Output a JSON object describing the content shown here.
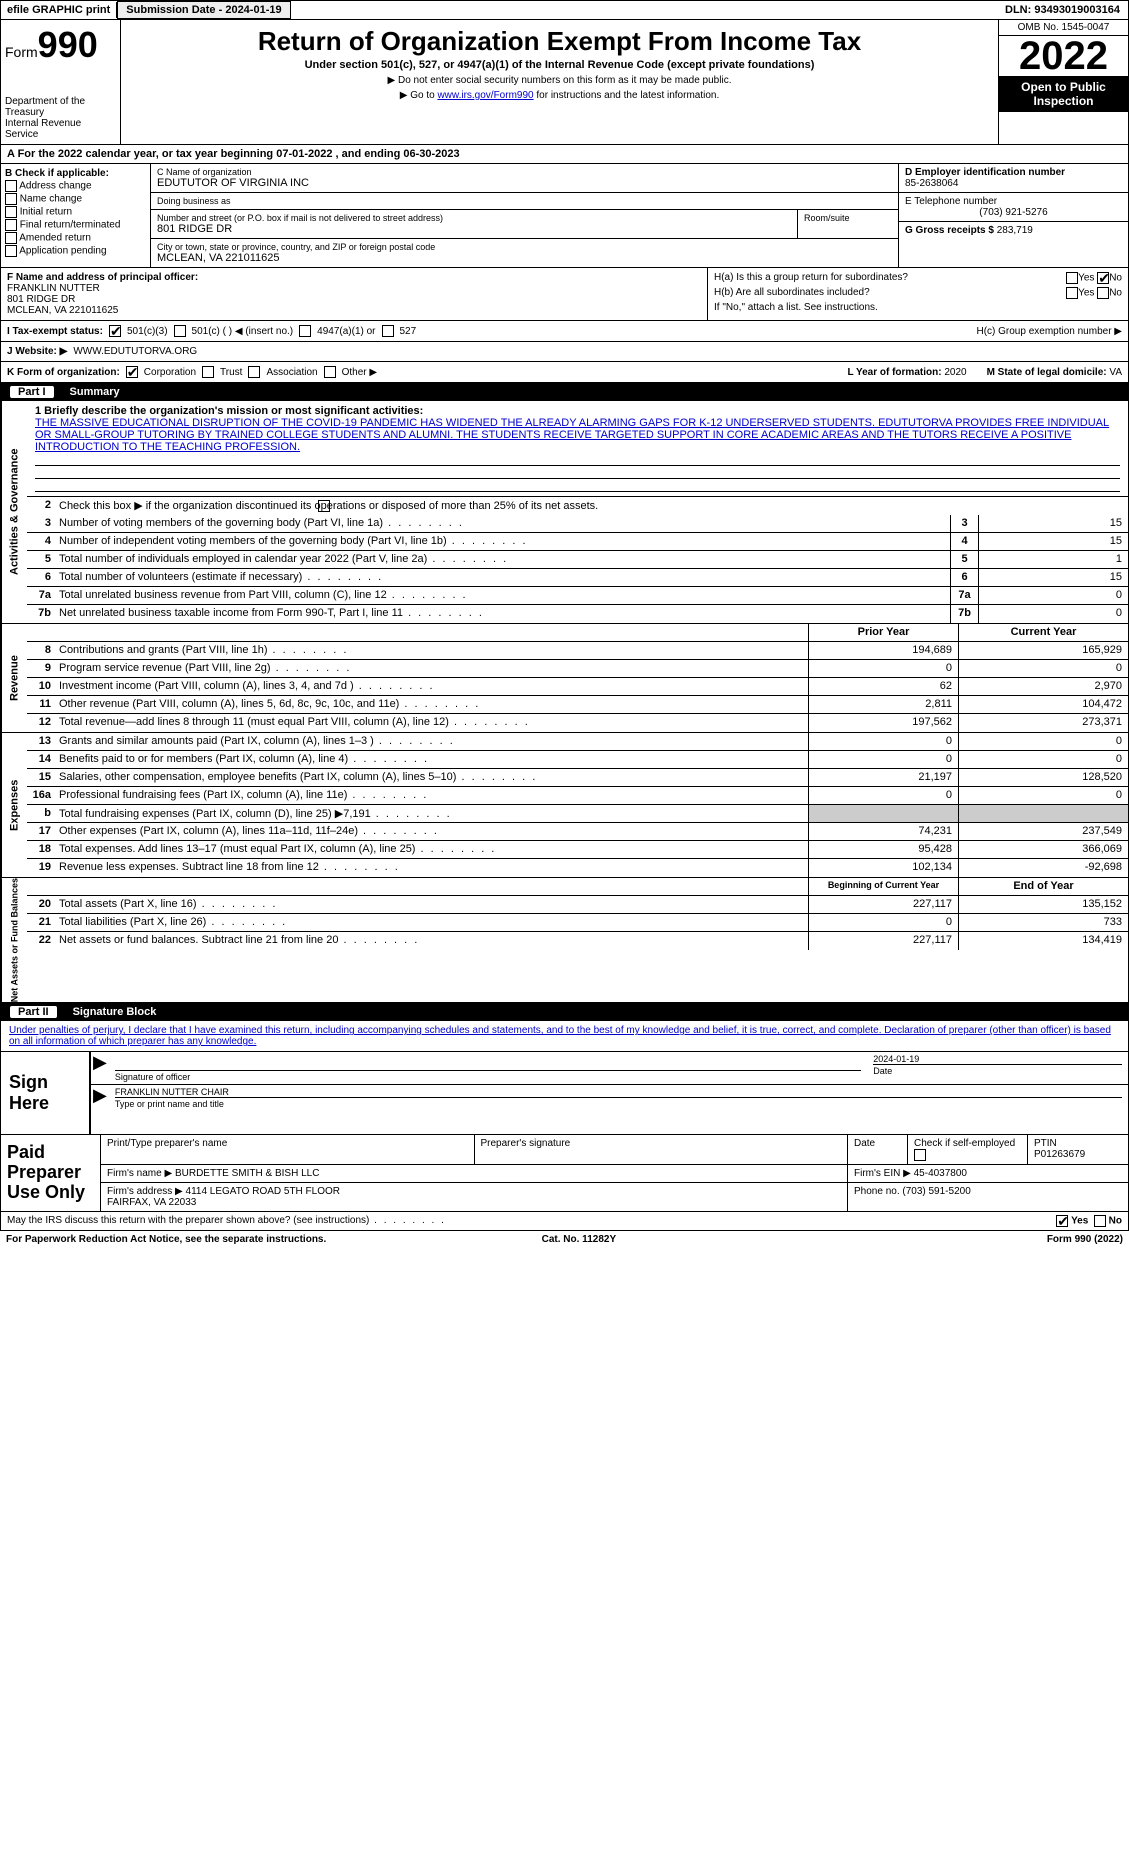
{
  "top": {
    "efile": "efile GRAPHIC print",
    "sub_label": "Submission Date - ",
    "sub_date": "2024-01-19",
    "dln_label": "DLN: ",
    "dln": "93493019003164"
  },
  "hdr": {
    "form_pre": "Form",
    "form_num": "990",
    "title": "Return of Organization Exempt From Income Tax",
    "sub": "Under section 501(c), 527, or 4947(a)(1) of the Internal Revenue Code (except private foundations)",
    "note1": "▶ Do not enter social security numbers on this form as it may be made public.",
    "note2_pre": "▶ Go to ",
    "note2_link": "www.irs.gov/Form990",
    "note2_post": " for instructions and the latest information.",
    "dept": "Department of the Treasury\nInternal Revenue Service",
    "omb": "OMB No. 1545-0047",
    "year": "2022",
    "open": "Open to Public Inspection"
  },
  "a": {
    "text_pre": "A For the 2022 calendar year, or tax year beginning ",
    "begin": "07-01-2022",
    "mid": "     , and ending ",
    "end": "06-30-2023"
  },
  "b": {
    "hdr": "B Check if applicable:",
    "opts": [
      "Address change",
      "Name change",
      "Initial return",
      "Final return/terminated",
      "Amended return",
      "Application pending"
    ]
  },
  "c": {
    "name_label": "C Name of organization",
    "name": "EDUTUTOR OF VIRGINIA INC",
    "dba_label": "Doing business as",
    "dba": "",
    "street_label": "Number and street (or P.O. box if mail is not delivered to street address)",
    "room_label": "Room/suite",
    "street": "801 RIDGE DR",
    "city_label": "City or town, state or province, country, and ZIP or foreign postal code",
    "city": "MCLEAN, VA  221011625"
  },
  "d": {
    "label": "D Employer identification number",
    "val": "85-2638064"
  },
  "e": {
    "label": "E Telephone number",
    "val": "(703) 921-5276"
  },
  "g": {
    "label": "G Gross receipts $ ",
    "val": "283,719"
  },
  "f": {
    "label": "F  Name and address of principal officer:",
    "name": "FRANKLIN NUTTER",
    "addr1": "801 RIDGE DR",
    "addr2": "MCLEAN, VA  221011625"
  },
  "h": {
    "a": "H(a)  Is this a group return for subordinates?",
    "b": "H(b)  Are all subordinates included?",
    "note": "If \"No,\" attach a list. See instructions.",
    "c": "H(c)  Group exemption number ▶",
    "yes": "Yes",
    "no": "No"
  },
  "i": {
    "label": "I   Tax-exempt status:",
    "c3": "501(c)(3)",
    "c": "501(c) (   ) ◀ (insert no.)",
    "a1": "4947(a)(1) or",
    "527": "527"
  },
  "j": {
    "label": "J   Website: ▶",
    "val": "WWW.EDUTUTORVA.ORG"
  },
  "k": {
    "label": "K Form of organization:",
    "corp": "Corporation",
    "trust": "Trust",
    "assoc": "Association",
    "other": "Other ▶",
    "l": "L Year of formation: ",
    "l_val": "2020",
    "m": "M State of legal domicile: ",
    "m_val": "VA"
  },
  "p1": {
    "num": "Part I",
    "title": "Summary"
  },
  "mission": {
    "q1": "1 Briefly describe the organization's mission or most significant activities:",
    "text": "THE MASSIVE EDUCATIONAL DISRUPTION OF THE COVID-19 PANDEMIC HAS WIDENED THE ALREADY ALARMING GAPS FOR K-12 UNDERSERVED STUDENTS. EDUTUTORVA PROVIDES FREE INDIVIDUAL OR SMALL-GROUP TUTORING BY TRAINED COLLEGE STUDENTS AND ALUMNI. THE STUDENTS RECEIVE TARGETED SUPPORT IN CORE ACADEMIC AREAS AND THE TUTORS RECEIVE A POSITIVE INTRODUCTION TO THE TEACHING PROFESSION."
  },
  "gov": {
    "tab": "Activities & Governance",
    "r2": "Check this box ▶        if the organization discontinued its operations or disposed of more than 25% of its net assets.",
    "rows": [
      {
        "n": "3",
        "d": "Number of voting members of the governing body (Part VI, line 1a)",
        "b": "3",
        "v": "15"
      },
      {
        "n": "4",
        "d": "Number of independent voting members of the governing body (Part VI, line 1b)",
        "b": "4",
        "v": "15"
      },
      {
        "n": "5",
        "d": "Total number of individuals employed in calendar year 2022 (Part V, line 2a)",
        "b": "5",
        "v": "1"
      },
      {
        "n": "6",
        "d": "Total number of volunteers (estimate if necessary)",
        "b": "6",
        "v": "15"
      },
      {
        "n": "7a",
        "d": "Total unrelated business revenue from Part VIII, column (C), line 12",
        "b": "7a",
        "v": "0"
      },
      {
        "n": "7b",
        "d": "Net unrelated business taxable income from Form 990-T, Part I, line 11",
        "b": "7b",
        "v": "0"
      }
    ]
  },
  "rev": {
    "tab": "Revenue",
    "hdr_prior": "Prior Year",
    "hdr_curr": "Current Year",
    "rows": [
      {
        "n": "8",
        "d": "Contributions and grants (Part VIII, line 1h)",
        "p": "194,689",
        "c": "165,929"
      },
      {
        "n": "9",
        "d": "Program service revenue (Part VIII, line 2g)",
        "p": "0",
        "c": "0"
      },
      {
        "n": "10",
        "d": "Investment income (Part VIII, column (A), lines 3, 4, and 7d )",
        "p": "62",
        "c": "2,970"
      },
      {
        "n": "11",
        "d": "Other revenue (Part VIII, column (A), lines 5, 6d, 8c, 9c, 10c, and 11e)",
        "p": "2,811",
        "c": "104,472"
      },
      {
        "n": "12",
        "d": "Total revenue—add lines 8 through 11 (must equal Part VIII, column (A), line 12)",
        "p": "197,562",
        "c": "273,371"
      }
    ]
  },
  "exp": {
    "tab": "Expenses",
    "rows": [
      {
        "n": "13",
        "d": "Grants and similar amounts paid (Part IX, column (A), lines 1–3 )",
        "p": "0",
        "c": "0"
      },
      {
        "n": "14",
        "d": "Benefits paid to or for members (Part IX, column (A), line 4)",
        "p": "0",
        "c": "0"
      },
      {
        "n": "15",
        "d": "Salaries, other compensation, employee benefits (Part IX, column (A), lines 5–10)",
        "p": "21,197",
        "c": "128,520"
      },
      {
        "n": "16a",
        "d": "Professional fundraising fees (Part IX, column (A), line 11e)",
        "p": "0",
        "c": "0"
      },
      {
        "n": "b",
        "d": "Total fundraising expenses (Part IX, column (D), line 25) ▶7,191",
        "p": "",
        "c": "",
        "shade": true
      },
      {
        "n": "17",
        "d": "Other expenses (Part IX, column (A), lines 11a–11d, 11f–24e)",
        "p": "74,231",
        "c": "237,549"
      },
      {
        "n": "18",
        "d": "Total expenses. Add lines 13–17 (must equal Part IX, column (A), line 25)",
        "p": "95,428",
        "c": "366,069"
      },
      {
        "n": "19",
        "d": "Revenue less expenses. Subtract line 18 from line 12",
        "p": "102,134",
        "c": "-92,698"
      }
    ]
  },
  "net": {
    "tab": "Net Assets or Fund Balances",
    "hdr_prior": "Beginning of Current Year",
    "hdr_curr": "End of Year",
    "rows": [
      {
        "n": "20",
        "d": "Total assets (Part X, line 16)",
        "p": "227,117",
        "c": "135,152"
      },
      {
        "n": "21",
        "d": "Total liabilities (Part X, line 26)",
        "p": "0",
        "c": "733"
      },
      {
        "n": "22",
        "d": "Net assets or fund balances. Subtract line 21 from line 20",
        "p": "227,117",
        "c": "134,419"
      }
    ]
  },
  "p2": {
    "num": "Part II",
    "title": "Signature Block",
    "intro": "Under penalties of perjury, I declare that I have examined this return, including accompanying schedules and statements, and to the best of my knowledge and belief, it is true, correct, and complete. Declaration of preparer (other than officer) is based on all information of which preparer has any knowledge."
  },
  "sign": {
    "here": "Sign Here",
    "sig_of": "Signature of officer",
    "date": "Date",
    "date_val": "2024-01-19",
    "name": "FRANKLIN NUTTER  CHAIR",
    "name_lbl": "Type or print name and title"
  },
  "prep": {
    "left": "Paid Preparer Use Only",
    "h": [
      "Print/Type preparer's name",
      "Preparer's signature",
      "Date",
      "Check        if self-employed",
      "PTIN"
    ],
    "ptin": "P01263679",
    "firm_lbl": "Firm's name     ▶",
    "firm": "BURDETTE SMITH & BISH LLC",
    "ein_lbl": "Firm's EIN ▶ ",
    "ein": "45-4037800",
    "addr_lbl": "Firm's address ▶",
    "addr": "4114 LEGATO ROAD 5TH FLOOR\nFAIRFAX, VA  22033",
    "phone_lbl": "Phone no. ",
    "phone": "(703) 591-5200"
  },
  "discuss": {
    "q": "May the IRS discuss this return with the preparer shown above? (see instructions)",
    "yes": "Yes",
    "no": "No"
  },
  "foot": {
    "l": "For Paperwork Reduction Act Notice, see the separate instructions.",
    "m": "Cat. No. 11282Y",
    "r": "Form 990 (2022)"
  }
}
